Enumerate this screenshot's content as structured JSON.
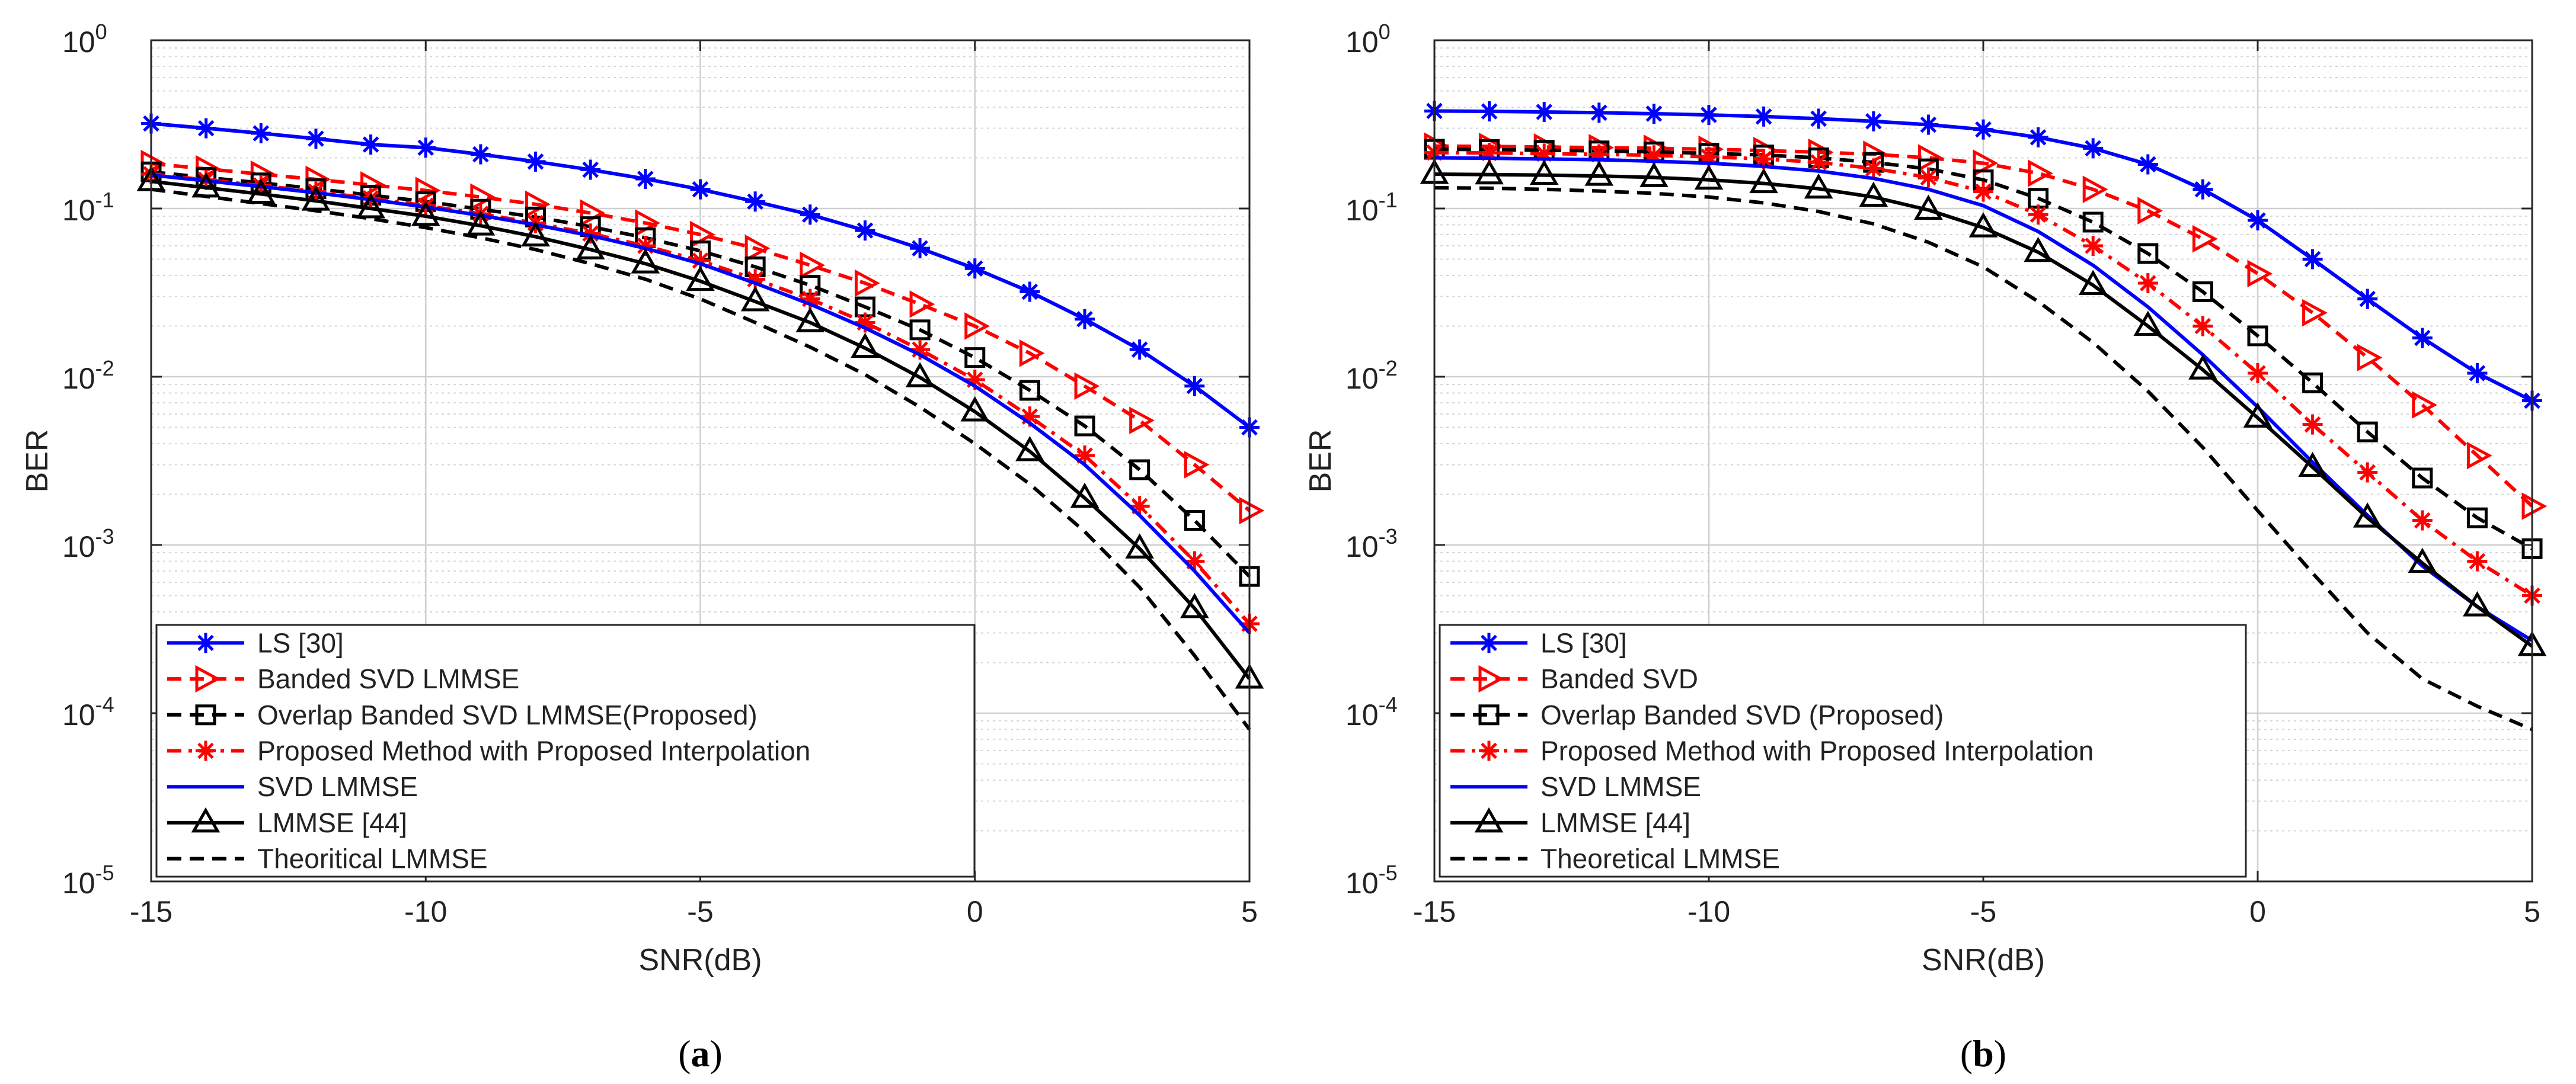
{
  "chart_data": [
    {
      "type": "line",
      "panel_label": "a",
      "xlabel": "SNR(dB)",
      "ylabel": "BER",
      "xlim": [
        -15,
        5
      ],
      "ylim": [
        1e-05,
        1
      ],
      "yscale": "log",
      "grid": true,
      "legend_position": "bottom-left",
      "x_ticks": [
        "-15",
        "-10",
        "-5",
        "0",
        "5"
      ],
      "y_ticks": [
        {
          "base": "10",
          "exp": "0"
        },
        {
          "base": "10",
          "exp": "-1"
        },
        {
          "base": "10",
          "exp": "-2"
        },
        {
          "base": "10",
          "exp": "-3"
        },
        {
          "base": "10",
          "exp": "-4"
        },
        {
          "base": "10",
          "exp": "-5"
        }
      ],
      "x": [
        -15,
        -14,
        -13,
        -12,
        -11,
        -10,
        -9,
        -8,
        -7,
        -6,
        -5,
        -4,
        -3,
        -2,
        -1,
        0,
        1,
        2,
        3,
        4,
        5
      ],
      "series": [
        {
          "name": "LS [30]",
          "color": "#0000ff",
          "dash": "solid",
          "marker": "asterisk",
          "values": [
            0.32,
            0.3,
            0.28,
            0.26,
            0.24,
            0.23,
            0.21,
            0.19,
            0.17,
            0.15,
            0.13,
            0.11,
            0.092,
            0.074,
            0.058,
            0.044,
            0.032,
            0.022,
            0.0145,
            0.0088,
            0.005
          ]
        },
        {
          "name": "Banded SVD LMMSE",
          "color": "#ff0000",
          "dash": "dashed",
          "marker": "triangle-right",
          "values": [
            0.185,
            0.172,
            0.16,
            0.149,
            0.138,
            0.128,
            0.117,
            0.106,
            0.094,
            0.082,
            0.07,
            0.058,
            0.046,
            0.036,
            0.027,
            0.02,
            0.0138,
            0.0088,
            0.0055,
            0.003,
            0.0016
          ]
        },
        {
          "name": "Overlap Banded SVD LMMSE(Proposed)",
          "color": "#000000",
          "dash": "dashed",
          "marker": "square",
          "values": [
            0.165,
            0.153,
            0.142,
            0.131,
            0.12,
            0.11,
            0.099,
            0.089,
            0.078,
            0.067,
            0.056,
            0.045,
            0.035,
            0.026,
            0.019,
            0.013,
            0.0083,
            0.0051,
            0.0028,
            0.0014,
            0.00065
          ]
        },
        {
          "name": "Proposed Method with Proposed Interpolation",
          "color": "#ff0000",
          "dash": "dashdot",
          "marker": "asterisk",
          "values": [
            0.16,
            0.148,
            0.137,
            0.126,
            0.115,
            0.104,
            0.093,
            0.082,
            0.071,
            0.06,
            0.049,
            0.038,
            0.029,
            0.021,
            0.0145,
            0.0096,
            0.0058,
            0.0034,
            0.0017,
            0.0008,
            0.00034
          ]
        },
        {
          "name": "SVD LMMSE",
          "color": "#0000ff",
          "dash": "solid",
          "marker": "none",
          "values": [
            0.158,
            0.146,
            0.135,
            0.124,
            0.113,
            0.102,
            0.091,
            0.08,
            0.069,
            0.058,
            0.047,
            0.036,
            0.027,
            0.0195,
            0.0135,
            0.0088,
            0.0053,
            0.003,
            0.0015,
            0.0007,
            0.0003
          ]
        },
        {
          "name": "LMMSE [44]",
          "color": "#000000",
          "dash": "solid",
          "marker": "triangle-up",
          "values": [
            0.145,
            0.133,
            0.122,
            0.111,
            0.1,
            0.09,
            0.079,
            0.068,
            0.057,
            0.047,
            0.037,
            0.028,
            0.021,
            0.0148,
            0.0099,
            0.0062,
            0.0036,
            0.0019,
            0.00095,
            0.00042,
            0.00016
          ]
        },
        {
          "name": "Theoritical LMMSE",
          "color": "#000000",
          "dash": "dashed",
          "marker": "none",
          "values": [
            0.13,
            0.118,
            0.107,
            0.097,
            0.087,
            0.077,
            0.067,
            0.057,
            0.047,
            0.038,
            0.029,
            0.021,
            0.015,
            0.0103,
            0.0066,
            0.004,
            0.0023,
            0.0012,
            0.00056,
            0.00022,
            8e-05
          ]
        }
      ]
    },
    {
      "type": "line",
      "panel_label": "b",
      "xlabel": "SNR(dB)",
      "ylabel": "BER",
      "xlim": [
        -15,
        5
      ],
      "ylim": [
        1e-05,
        1
      ],
      "yscale": "log",
      "grid": true,
      "legend_position": "bottom-left",
      "x_ticks": [
        "-15",
        "-10",
        "-5",
        "0",
        "5"
      ],
      "y_ticks": [
        {
          "base": "10",
          "exp": "0"
        },
        {
          "base": "10",
          "exp": "-1"
        },
        {
          "base": "10",
          "exp": "-2"
        },
        {
          "base": "10",
          "exp": "-3"
        },
        {
          "base": "10",
          "exp": "-4"
        },
        {
          "base": "10",
          "exp": "-5"
        }
      ],
      "x": [
        -15,
        -14,
        -13,
        -12,
        -11,
        -10,
        -9,
        -8,
        -7,
        -6,
        -5,
        -4,
        -3,
        -2,
        -1,
        0,
        1,
        2,
        3,
        4,
        5
      ],
      "series": [
        {
          "name": "LS [30]",
          "color": "#0000ff",
          "dash": "solid",
          "marker": "asterisk",
          "values": [
            0.38,
            0.378,
            0.375,
            0.371,
            0.366,
            0.36,
            0.352,
            0.342,
            0.33,
            0.315,
            0.295,
            0.265,
            0.228,
            0.183,
            0.13,
            0.085,
            0.05,
            0.029,
            0.017,
            0.0105,
            0.0072
          ]
        },
        {
          "name": "Banded SVD",
          "color": "#ff0000",
          "dash": "dashed",
          "marker": "triangle-right",
          "values": [
            0.235,
            0.234,
            0.232,
            0.23,
            0.228,
            0.225,
            0.221,
            0.216,
            0.21,
            0.2,
            0.186,
            0.162,
            0.13,
            0.097,
            0.066,
            0.041,
            0.024,
            0.013,
            0.0068,
            0.0034,
            0.0017
          ]
        },
        {
          "name": "Overlap Banded SVD (Proposed)",
          "color": "#000000",
          "dash": "dashed",
          "marker": "square",
          "values": [
            0.225,
            0.224,
            0.222,
            0.22,
            0.217,
            0.213,
            0.208,
            0.2,
            0.188,
            0.172,
            0.148,
            0.115,
            0.083,
            0.054,
            0.032,
            0.0175,
            0.0092,
            0.0047,
            0.0025,
            0.00145,
            0.00095
          ]
        },
        {
          "name": "Proposed Method with Proposed Interpolation",
          "color": "#ff0000",
          "dash": "dashdot",
          "marker": "asterisk",
          "values": [
            0.215,
            0.214,
            0.212,
            0.21,
            0.207,
            0.203,
            0.197,
            0.188,
            0.173,
            0.153,
            0.126,
            0.092,
            0.06,
            0.036,
            0.02,
            0.0105,
            0.0052,
            0.0027,
            0.0014,
            0.0008,
            0.0005
          ]
        },
        {
          "name": "SVD LMMSE",
          "color": "#0000ff",
          "dash": "solid",
          "marker": "none",
          "values": [
            0.2,
            0.199,
            0.197,
            0.195,
            0.191,
            0.186,
            0.178,
            0.167,
            0.151,
            0.13,
            0.104,
            0.073,
            0.046,
            0.026,
            0.0135,
            0.0066,
            0.0031,
            0.0015,
            0.00075,
            0.00043,
            0.00027
          ]
        },
        {
          "name": "LMMSE [44]",
          "color": "#000000",
          "dash": "solid",
          "marker": "triangle-up",
          "values": [
            0.16,
            0.159,
            0.158,
            0.156,
            0.153,
            0.148,
            0.141,
            0.131,
            0.117,
            0.098,
            0.077,
            0.055,
            0.035,
            0.02,
            0.011,
            0.0057,
            0.0029,
            0.00145,
            0.00078,
            0.00043,
            0.00025
          ]
        },
        {
          "name": "Theoretical LMMSE",
          "color": "#000000",
          "dash": "dashed",
          "marker": "none",
          "values": [
            0.133,
            0.132,
            0.13,
            0.127,
            0.123,
            0.117,
            0.108,
            0.096,
            0.081,
            0.063,
            0.045,
            0.028,
            0.016,
            0.0082,
            0.0038,
            0.0016,
            0.00068,
            0.0003,
            0.00016,
            0.00011,
            8e-05
          ]
        }
      ]
    }
  ]
}
